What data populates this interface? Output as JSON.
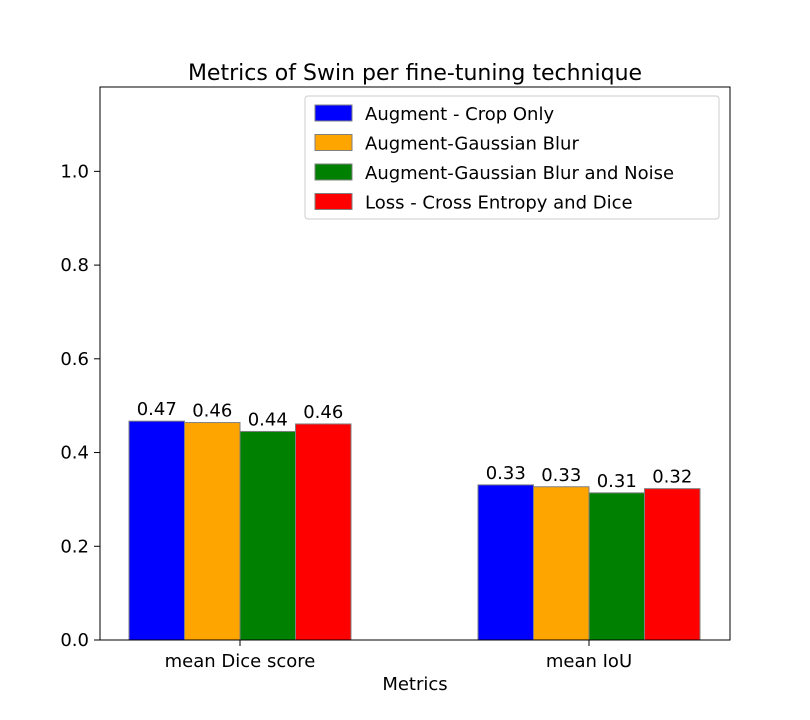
{
  "chart_data": {
    "type": "bar",
    "title": "Metrics of Swin per fine-tuning technique",
    "xlabel": "Metrics",
    "ylabel": "",
    "categories": [
      "mean Dice score",
      "mean IoU"
    ],
    "series": [
      {
        "name": "Augment - Crop Only",
        "color": "#0000ff",
        "values": [
          0.467,
          0.331
        ],
        "labels": [
          "0.47",
          "0.33"
        ]
      },
      {
        "name": "Augment-Gaussian Blur",
        "color": "#ffa500",
        "values": [
          0.464,
          0.327
        ],
        "labels": [
          "0.46",
          "0.33"
        ]
      },
      {
        "name": "Augment-Gaussian Blur and Noise",
        "color": "#008000",
        "values": [
          0.445,
          0.314
        ],
        "labels": [
          "0.44",
          "0.31"
        ]
      },
      {
        "name": "Loss - Cross Entropy and Dice",
        "color": "#ff0000",
        "values": [
          0.461,
          0.323
        ],
        "labels": [
          "0.46",
          "0.32"
        ]
      }
    ],
    "ylim": [
      0,
      1.18
    ],
    "yticks": [
      0.0,
      0.2,
      0.4,
      0.6,
      0.8,
      1.0
    ],
    "ytick_labels": [
      "0.0",
      "0.2",
      "0.4",
      "0.6",
      "0.8",
      "1.0"
    ],
    "grid": false,
    "legend": "top-right",
    "bar_edge_color": "#808080"
  }
}
